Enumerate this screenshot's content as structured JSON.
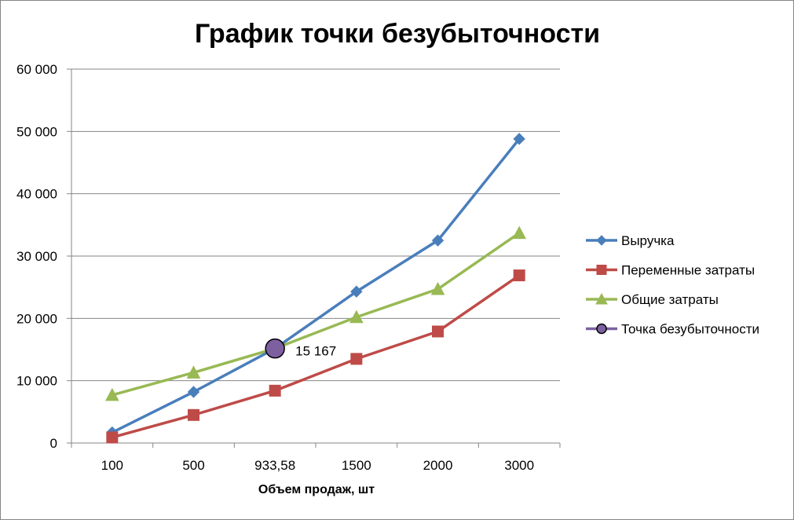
{
  "chart_data": {
    "type": "line",
    "title": "График точки безубыточности",
    "xlabel": "Объем продаж, шт",
    "ylabel": "",
    "categories": [
      "100",
      "500",
      "933,58",
      "1500",
      "2000",
      "3000"
    ],
    "ylim": [
      0,
      60000
    ],
    "yticks": [
      0,
      10000,
      20000,
      30000,
      40000,
      50000,
      60000
    ],
    "ytick_labels": [
      "0",
      "10 000",
      "20 000",
      "30 000",
      "40 000",
      "50 000",
      "60 000"
    ],
    "grid": true,
    "legend": "right",
    "series": [
      {
        "name": "Выручка",
        "color": "#4a7ebb",
        "marker": "diamond",
        "values": [
          1700,
          8200,
          15167,
          24300,
          32500,
          48800
        ]
      },
      {
        "name": "Переменные затраты",
        "color": "#be4b48",
        "marker": "square",
        "values": [
          900,
          4500,
          8400,
          13500,
          17900,
          26900
        ]
      },
      {
        "name": "Общие затраты",
        "color": "#98b954",
        "marker": "triangle",
        "values": [
          7700,
          11300,
          15167,
          20200,
          24700,
          33700
        ]
      },
      {
        "name": "Точка безубыточности",
        "color": "#7d60a0",
        "marker": "circle",
        "values": [
          null,
          null,
          15167,
          null,
          null,
          null
        ]
      }
    ],
    "annotations": [
      {
        "category": "933,58",
        "value": 15167,
        "text": "15 167"
      }
    ]
  }
}
